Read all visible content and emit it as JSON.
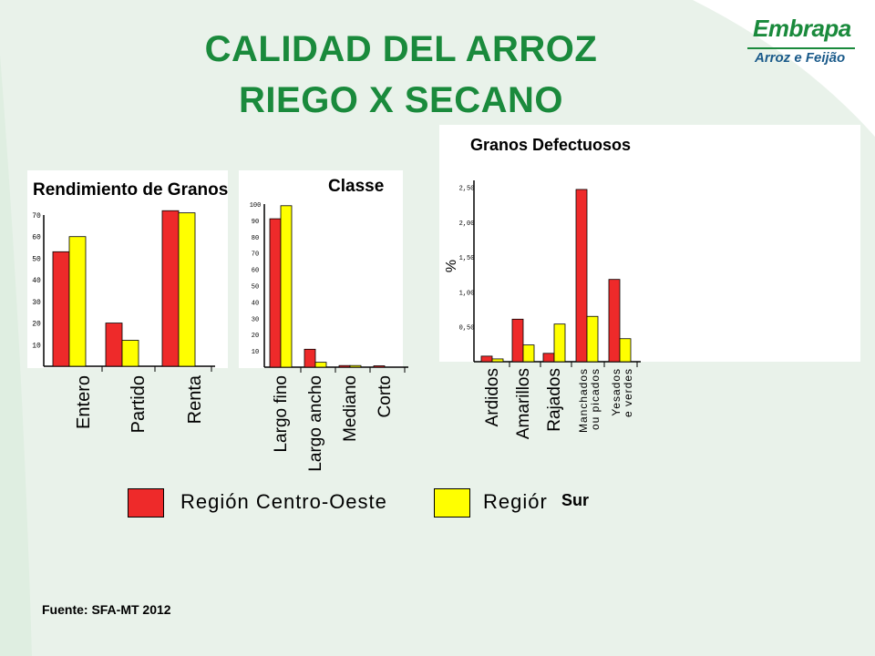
{
  "slide": {
    "title_line1": "CALIDAD DEL ARROZ",
    "title_line2": "RIEGO X SECANO",
    "source": "Fuente: SFA-MT 2012",
    "colors": {
      "title": "#1a8a3c",
      "centro_oeste": "#ee2a2a",
      "sur": "#ffff00",
      "bg_shape": "#e9f2ea"
    }
  },
  "logo": {
    "wordmark": "Embrapa",
    "subtitle": "Arroz e Feijão"
  },
  "legend": {
    "items": [
      {
        "label": "Región Centro-Oeste",
        "color": "#ee2a2a"
      },
      {
        "label": "Regiór",
        "extra": "Sur",
        "color": "#ffff00"
      }
    ]
  },
  "chart_data": [
    {
      "type": "bar",
      "title": "Rendimiento de Granos",
      "categories": [
        "Entero",
        "Partido",
        "Renta"
      ],
      "series": [
        {
          "name": "Región Centro-Oeste",
          "color": "#ee2a2a",
          "values": [
            53,
            20,
            72
          ]
        },
        {
          "name": "Sur",
          "color": "#ffff00",
          "values": [
            60,
            12,
            71
          ]
        }
      ],
      "yticks": [
        "10",
        "20",
        "30",
        "40",
        "50",
        "60",
        "70"
      ],
      "ylim": [
        0,
        70
      ]
    },
    {
      "type": "bar",
      "title": "Classe",
      "categories": [
        "Largo fino",
        "Largo ancho",
        "Mediano",
        "Corto"
      ],
      "series": [
        {
          "name": "Región Centro-Oeste",
          "color": "#ee2a2a",
          "values": [
            91,
            11,
            1,
            0.5
          ]
        },
        {
          "name": "Sur",
          "color": "#ffff00",
          "values": [
            99,
            3,
            1,
            0
          ]
        }
      ],
      "yticks": [
        "10",
        "20",
        "30",
        "40",
        "50",
        "60",
        "70",
        "80",
        "90",
        "100"
      ],
      "ylim": [
        0,
        100
      ]
    },
    {
      "type": "bar",
      "title": "Granos Defectuosos",
      "ylabel": "%",
      "categories": [
        "Ardidos",
        "Amarillos",
        "Rajados",
        "Manchados ou picados",
        "Yesados e verdes"
      ],
      "category_lines": [
        [
          "Ardidos"
        ],
        [
          "Amarillos"
        ],
        [
          "Rajados"
        ],
        [
          "Manchados",
          "ou picados"
        ],
        [
          "Yesados",
          "e verdes"
        ]
      ],
      "series": [
        {
          "name": "Región Centro-Oeste",
          "color": "#ee2a2a",
          "values": [
            0.08,
            0.61,
            0.12,
            2.47,
            1.18
          ]
        },
        {
          "name": "Sur",
          "color": "#ffff00",
          "values": [
            0.04,
            0.24,
            0.54,
            0.65,
            0.33
          ]
        }
      ],
      "yticks": [
        "0,50",
        "1,00",
        "1,50",
        "2,00",
        "2,50"
      ],
      "ylim": [
        0,
        2.6
      ]
    }
  ]
}
